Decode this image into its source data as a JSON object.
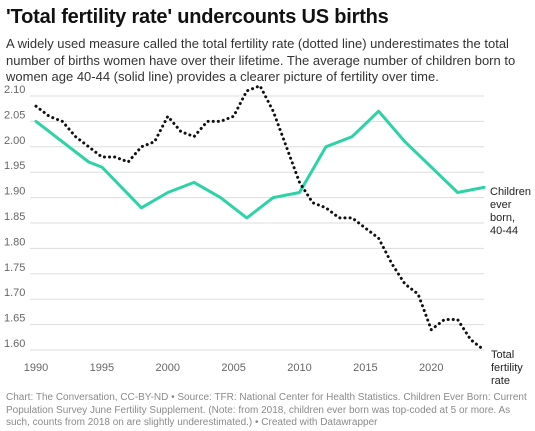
{
  "title": "'Total fertility rate' undercounts US births",
  "subtitle": "A widely used measure called the total fertility rate (dotted line) underestimates the total number of births women have over their lifetime. The average number of children born to women age 40-44 (solid line) provides a clearer picture of fertility over time.",
  "footer": "Chart: The Conversation, CC-BY-ND • Source: TFR: National Center for Health Statistics. Children Ever Born: Current Population Survey June Fertility Supplement. (Note: from 2018, children ever born was top-coded at 5 or more. As such, counts from 2018 on are slightly underestimated.) • Created with Datawrapper",
  "colors": {
    "ceb": "#2ed3a5",
    "tfr": "#111111",
    "grid": "#dddddd",
    "tick": "#666666"
  },
  "chart_data": {
    "type": "line",
    "xlim": [
      1990,
      2024
    ],
    "ylim": [
      1.6,
      2.1
    ],
    "xticks": [
      "1990",
      "1995",
      "2000",
      "2005",
      "2010",
      "2015",
      "2020"
    ],
    "yticks": [
      "2.10",
      "2.05",
      "2.00",
      "1.95",
      "1.90",
      "1.85",
      "1.80",
      "1.75",
      "1.70",
      "1.65",
      "1.60"
    ],
    "grid": true,
    "series": [
      {
        "key": "ceb",
        "label_lines": [
          "Children",
          "ever",
          "born,",
          "40-44"
        ],
        "style": "solid",
        "points": [
          [
            1990,
            2.05
          ],
          [
            1994,
            1.97
          ],
          [
            1995,
            1.96
          ],
          [
            1998,
            1.88
          ],
          [
            2000,
            1.91
          ],
          [
            2002,
            1.93
          ],
          [
            2004,
            1.9
          ],
          [
            2006,
            1.86
          ],
          [
            2008,
            1.9
          ],
          [
            2010,
            1.91
          ],
          [
            2012,
            2.0
          ],
          [
            2014,
            2.02
          ],
          [
            2016,
            2.07
          ],
          [
            2018,
            2.01
          ],
          [
            2020,
            1.96
          ],
          [
            2022,
            1.91
          ],
          [
            2024,
            1.92
          ]
        ]
      },
      {
        "key": "tfr",
        "label_lines": [
          "Total",
          "fertility",
          "rate"
        ],
        "style": "dotted",
        "points": [
          [
            1990,
            2.08
          ],
          [
            1991,
            2.06
          ],
          [
            1992,
            2.05
          ],
          [
            1993,
            2.02
          ],
          [
            1994,
            2.0
          ],
          [
            1995,
            1.98
          ],
          [
            1996,
            1.98
          ],
          [
            1997,
            1.97
          ],
          [
            1998,
            2.0
          ],
          [
            1999,
            2.01
          ],
          [
            2000,
            2.06
          ],
          [
            2001,
            2.03
          ],
          [
            2002,
            2.02
          ],
          [
            2003,
            2.05
          ],
          [
            2004,
            2.05
          ],
          [
            2005,
            2.06
          ],
          [
            2006,
            2.11
          ],
          [
            2007,
            2.12
          ],
          [
            2008,
            2.07
          ],
          [
            2009,
            2.0
          ],
          [
            2010,
            1.93
          ],
          [
            2011,
            1.89
          ],
          [
            2012,
            1.88
          ],
          [
            2013,
            1.86
          ],
          [
            2014,
            1.86
          ],
          [
            2015,
            1.84
          ],
          [
            2016,
            1.82
          ],
          [
            2017,
            1.77
          ],
          [
            2018,
            1.73
          ],
          [
            2019,
            1.71
          ],
          [
            2020,
            1.64
          ],
          [
            2021,
            1.66
          ],
          [
            2022,
            1.66
          ],
          [
            2023,
            1.62
          ],
          [
            2024,
            1.6
          ]
        ]
      }
    ]
  }
}
